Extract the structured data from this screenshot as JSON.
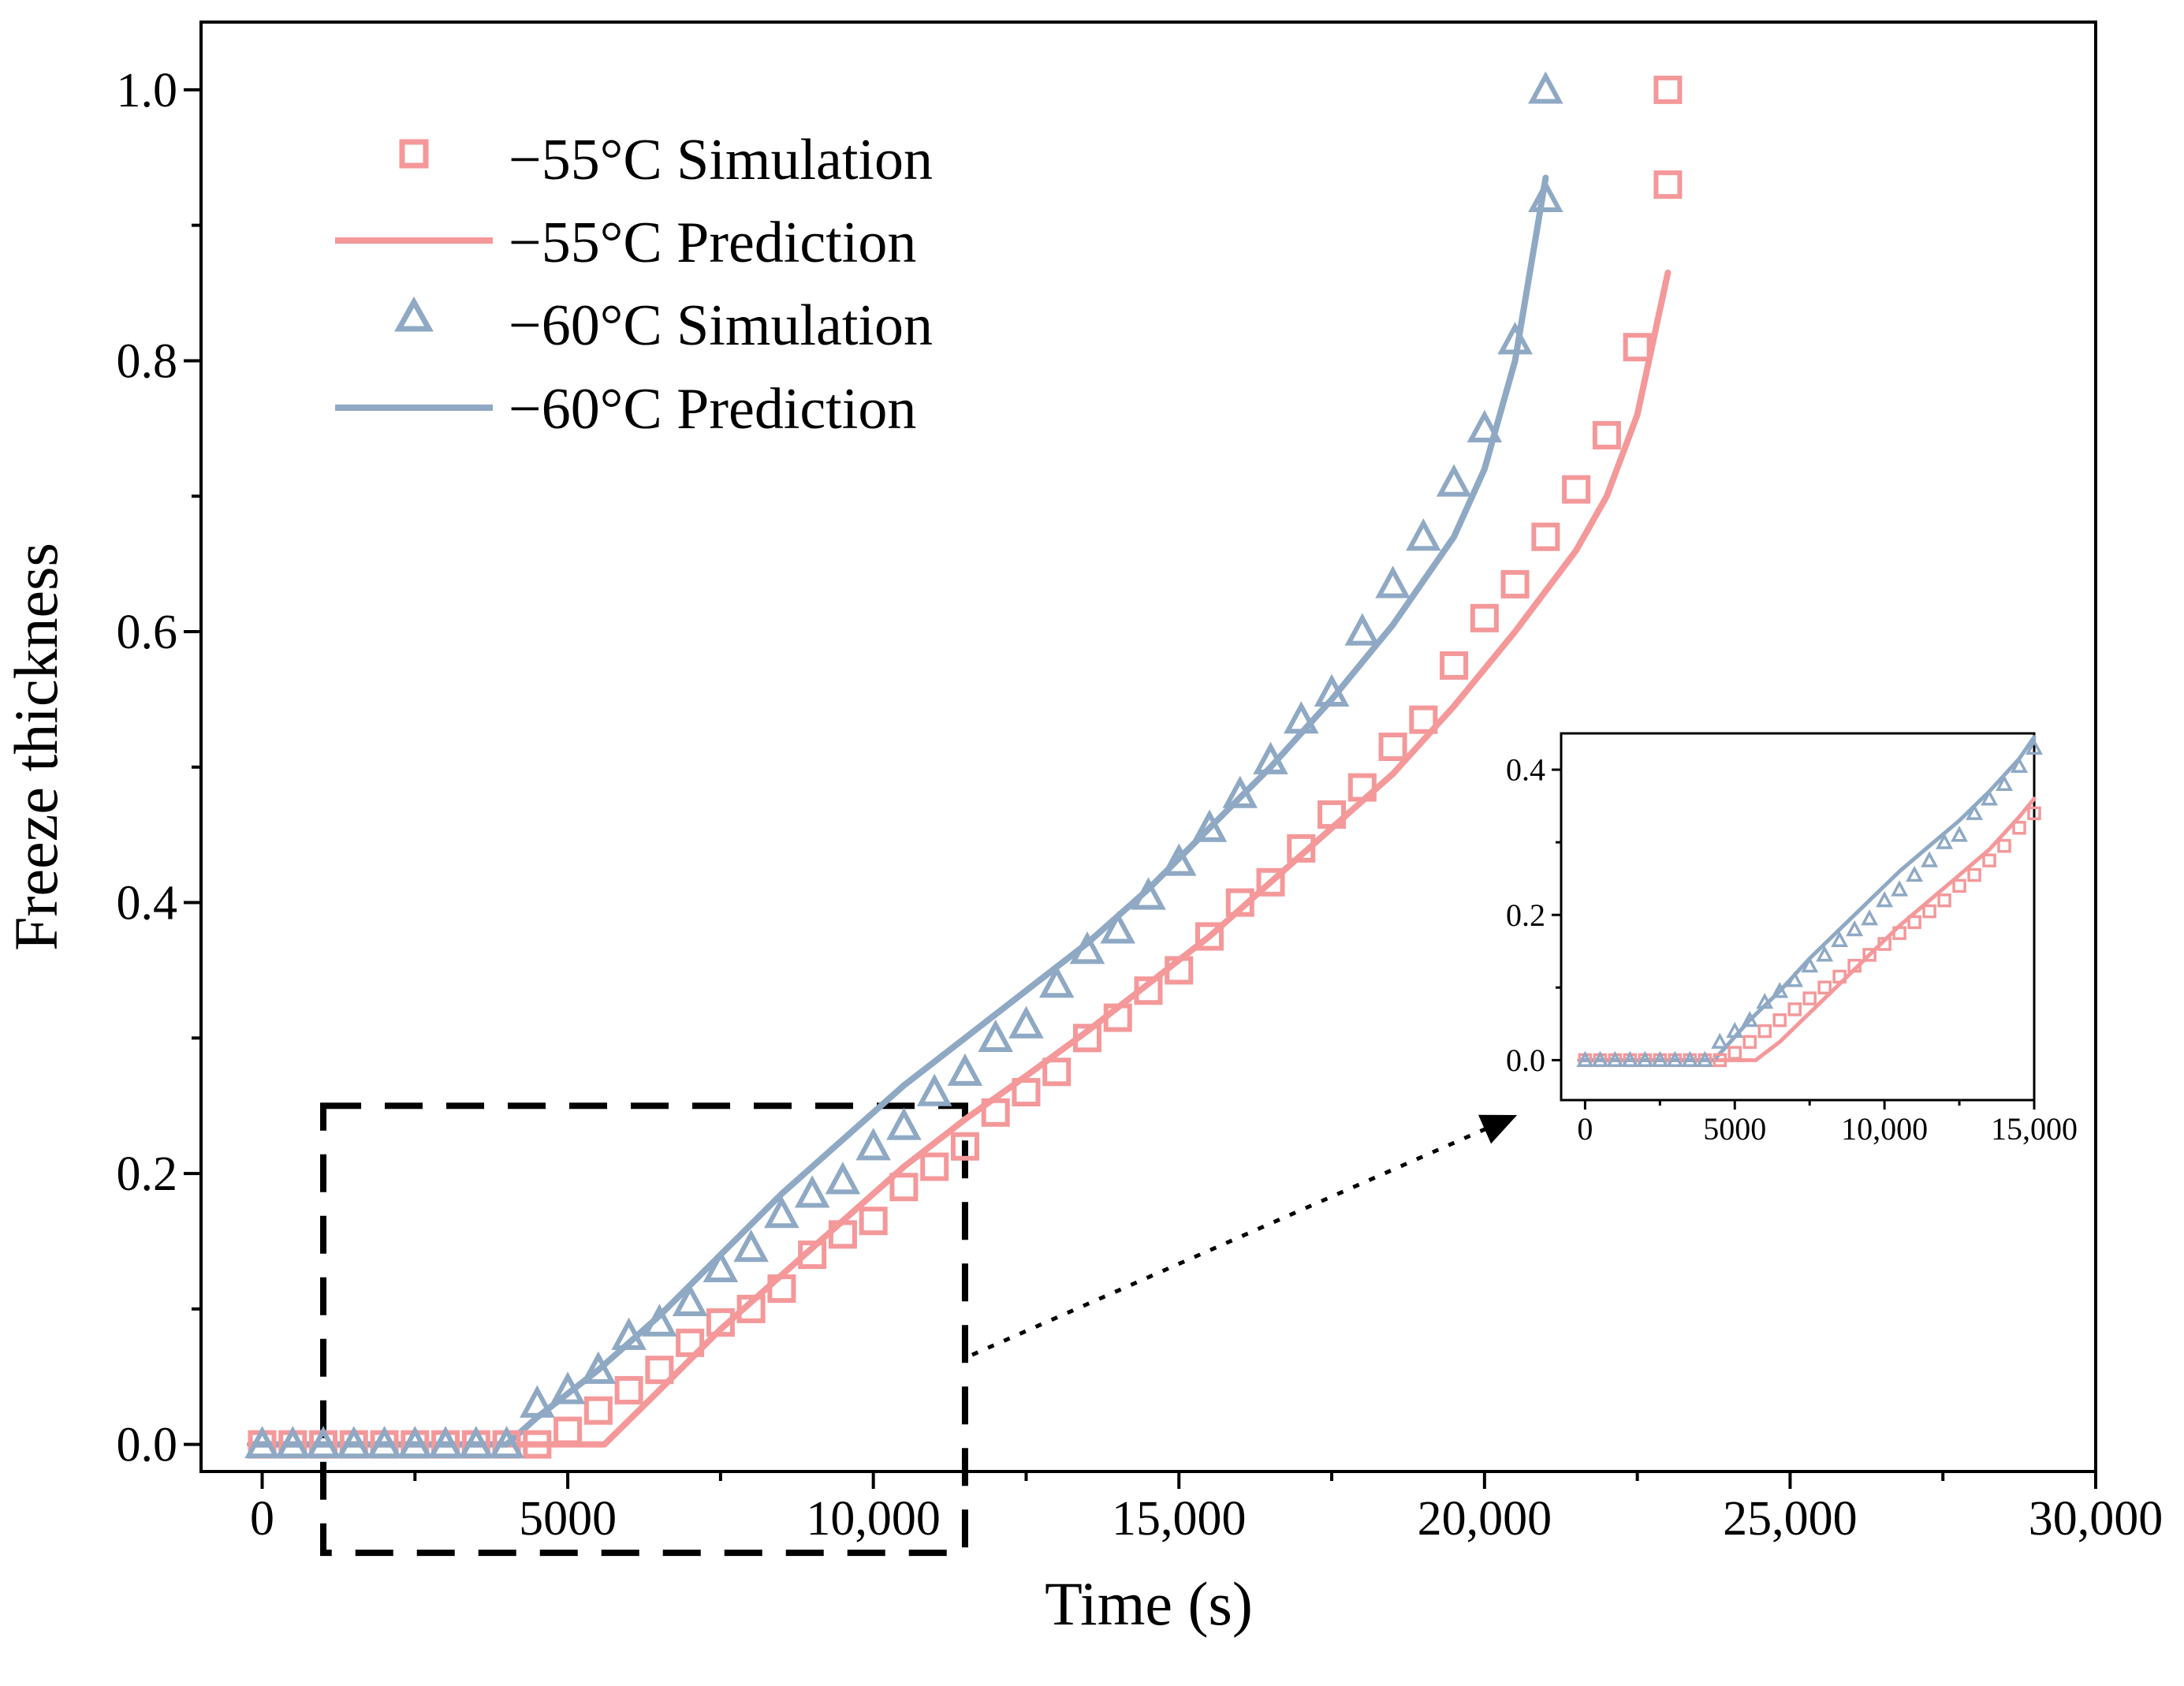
{
  "chart_data": [
    {
      "type": "scatter",
      "title": "",
      "xlabel": "Time (s)",
      "ylabel": "Freeze thickness",
      "xlim": [
        -1000,
        30000
      ],
      "ylim": [
        -0.02,
        1.05
      ],
      "x_ticks": [
        0,
        5000,
        10000,
        15000,
        20000,
        25000,
        30000
      ],
      "x_tick_labels": [
        "0",
        "5000",
        "10,000",
        "15,000",
        "20,000",
        "25,000",
        "30,000"
      ],
      "y_ticks": [
        0.0,
        0.2,
        0.4,
        0.6,
        0.8,
        1.0
      ],
      "y_tick_labels": [
        "0.0",
        "0.2",
        "0.4",
        "0.6",
        "0.8",
        "1.0"
      ],
      "grid": false,
      "legend_position": "top-left",
      "colors": {
        "m55": "#f4989a",
        "m60": "#8fa9c4",
        "axis": "#000000"
      },
      "series": [
        {
          "name": "−55°C Simulation",
          "kind": "square",
          "color": "#f4989a",
          "x": [
            0,
            500,
            1000,
            1500,
            2000,
            2500,
            3000,
            3500,
            4000,
            4500,
            5000,
            5500,
            6000,
            6500,
            7000,
            7500,
            8000,
            8500,
            9000,
            9500,
            10000,
            10500,
            11000,
            11500,
            12000,
            12500,
            13000,
            13500,
            14000,
            14500,
            15000,
            15500,
            16000,
            16500,
            17000,
            17500,
            18000,
            18500,
            19000,
            19500,
            20000,
            20500,
            21000,
            21500,
            22000,
            22500,
            23000,
            23000
          ],
          "y": [
            0,
            0,
            0,
            0,
            0,
            0,
            0,
            0,
            0,
            0,
            0.01,
            0.025,
            0.04,
            0.055,
            0.075,
            0.09,
            0.1,
            0.115,
            0.14,
            0.155,
            0.165,
            0.19,
            0.205,
            0.22,
            0.245,
            0.26,
            0.275,
            0.3,
            0.315,
            0.335,
            0.35,
            0.375,
            0.4,
            0.415,
            0.44,
            0.465,
            0.485,
            0.515,
            0.535,
            0.575,
            0.61,
            0.635,
            0.67,
            0.705,
            0.745,
            0.81,
            0.93,
            1.0
          ]
        },
        {
          "name": "−55°C Prediction",
          "kind": "line",
          "color": "#f4989a",
          "x": [
            -200,
            1000,
            2000,
            3000,
            4000,
            5000,
            5600,
            6500,
            7500,
            8500,
            9500,
            10500,
            11500,
            12500,
            13500,
            14500,
            15500,
            16500,
            17500,
            18500,
            19500,
            20500,
            21500,
            22000,
            22500,
            23000
          ],
          "y": [
            0,
            0,
            0,
            0,
            0,
            0,
            0,
            0.04,
            0.085,
            0.125,
            0.165,
            0.205,
            0.24,
            0.272,
            0.305,
            0.34,
            0.375,
            0.415,
            0.455,
            0.495,
            0.545,
            0.6,
            0.66,
            0.7,
            0.76,
            0.865
          ]
        },
        {
          "name": "−60°C Simulation",
          "kind": "triangle",
          "color": "#8fa9c4",
          "x": [
            0,
            500,
            1000,
            1500,
            2000,
            2500,
            3000,
            3500,
            4000,
            4500,
            5000,
            5500,
            6000,
            6500,
            7000,
            7500,
            8000,
            8500,
            9000,
            9500,
            10000,
            10500,
            11000,
            11500,
            12000,
            12500,
            13000,
            13500,
            14000,
            14500,
            15000,
            15500,
            16000,
            16500,
            17000,
            17500,
            18000,
            18500,
            19000,
            19500,
            20000,
            20500,
            21000,
            21000
          ],
          "y": [
            0,
            0,
            0,
            0,
            0,
            0,
            0,
            0,
            0,
            0.03,
            0.04,
            0.055,
            0.08,
            0.09,
            0.105,
            0.13,
            0.145,
            0.17,
            0.185,
            0.195,
            0.22,
            0.235,
            0.26,
            0.275,
            0.3,
            0.31,
            0.34,
            0.365,
            0.38,
            0.405,
            0.43,
            0.455,
            0.48,
            0.505,
            0.535,
            0.555,
            0.6,
            0.635,
            0.67,
            0.71,
            0.75,
            0.815,
            0.92,
            1.0
          ]
        },
        {
          "name": "−60°C Prediction",
          "kind": "line",
          "color": "#8fa9c4",
          "x": [
            -200,
            1000,
            2000,
            3000,
            4000,
            4500,
            5500,
            6500,
            7500,
            8500,
            9500,
            10500,
            11500,
            12500,
            13500,
            14500,
            15500,
            16500,
            17500,
            18500,
            19500,
            20000,
            20500,
            21000
          ],
          "y": [
            0,
            0,
            0,
            0,
            0,
            0.02,
            0.055,
            0.095,
            0.14,
            0.185,
            0.225,
            0.265,
            0.3,
            0.335,
            0.37,
            0.41,
            0.455,
            0.5,
            0.55,
            0.605,
            0.67,
            0.72,
            0.8,
            0.935
          ]
        }
      ],
      "zoom_box": {
        "xlim": [
          1000,
          11500
        ],
        "ylim": [
          -0.08,
          0.25
        ]
      }
    },
    {
      "type": "scatter",
      "title": "",
      "xlabel": "",
      "ylabel": "",
      "xlim": [
        -800,
        15000
      ],
      "ylim": [
        -0.055,
        0.45
      ],
      "x_ticks": [
        0,
        5000,
        10000,
        15000
      ],
      "x_tick_labels": [
        "0",
        "5000",
        "10,000",
        "15,000"
      ],
      "y_ticks": [
        0.0,
        0.2,
        0.4
      ],
      "y_tick_labels": [
        "0.0",
        "0.2",
        "0.4"
      ],
      "grid": false,
      "legend_position": "none",
      "series": [
        {
          "name": "−55°C Simulation",
          "kind": "square",
          "color": "#f4989a",
          "x": [
            0,
            500,
            1000,
            1500,
            2000,
            2500,
            3000,
            3500,
            4000,
            4500,
            5000,
            5500,
            6000,
            6500,
            7000,
            7500,
            8000,
            8500,
            9000,
            9500,
            10000,
            10500,
            11000,
            11500,
            12000,
            12500,
            13000,
            13500,
            14000,
            14500,
            15000
          ],
          "y": [
            0,
            0,
            0,
            0,
            0,
            0,
            0,
            0,
            0,
            0,
            0.01,
            0.025,
            0.04,
            0.055,
            0.07,
            0.085,
            0.1,
            0.115,
            0.13,
            0.145,
            0.16,
            0.175,
            0.19,
            0.205,
            0.22,
            0.24,
            0.255,
            0.275,
            0.295,
            0.32,
            0.34
          ]
        },
        {
          "name": "−55°C Prediction",
          "kind": "line",
          "color": "#f4989a",
          "x": [
            -200,
            1000,
            2000,
            3000,
            4000,
            5000,
            5700,
            6500,
            7500,
            8500,
            9500,
            10500,
            11500,
            12500,
            13500,
            14500,
            15000
          ],
          "y": [
            0,
            0,
            0,
            0,
            0,
            0,
            0,
            0.025,
            0.065,
            0.105,
            0.145,
            0.185,
            0.22,
            0.255,
            0.29,
            0.335,
            0.36
          ]
        },
        {
          "name": "−60°C Simulation",
          "kind": "triangle",
          "color": "#8fa9c4",
          "x": [
            0,
            500,
            1000,
            1500,
            2000,
            2500,
            3000,
            3500,
            4000,
            4500,
            5000,
            5500,
            6000,
            6500,
            7000,
            7500,
            8000,
            8500,
            9000,
            9500,
            10000,
            10500,
            11000,
            11500,
            12000,
            12500,
            13000,
            13500,
            14000,
            14500,
            15000
          ],
          "y": [
            0,
            0,
            0,
            0,
            0,
            0,
            0,
            0,
            0,
            0.025,
            0.04,
            0.055,
            0.08,
            0.095,
            0.11,
            0.13,
            0.145,
            0.165,
            0.18,
            0.195,
            0.22,
            0.235,
            0.255,
            0.275,
            0.3,
            0.31,
            0.34,
            0.36,
            0.38,
            0.405,
            0.43
          ]
        },
        {
          "name": "−60°C Prediction",
          "kind": "line",
          "color": "#8fa9c4",
          "x": [
            -200,
            1000,
            2000,
            3000,
            4000,
            4300,
            5500,
            6500,
            7500,
            8500,
            9500,
            10500,
            11500,
            12500,
            13500,
            14500,
            15000
          ],
          "y": [
            0,
            0,
            0,
            0,
            0,
            0,
            0.055,
            0.095,
            0.14,
            0.18,
            0.22,
            0.26,
            0.295,
            0.33,
            0.37,
            0.415,
            0.445
          ]
        }
      ]
    }
  ]
}
